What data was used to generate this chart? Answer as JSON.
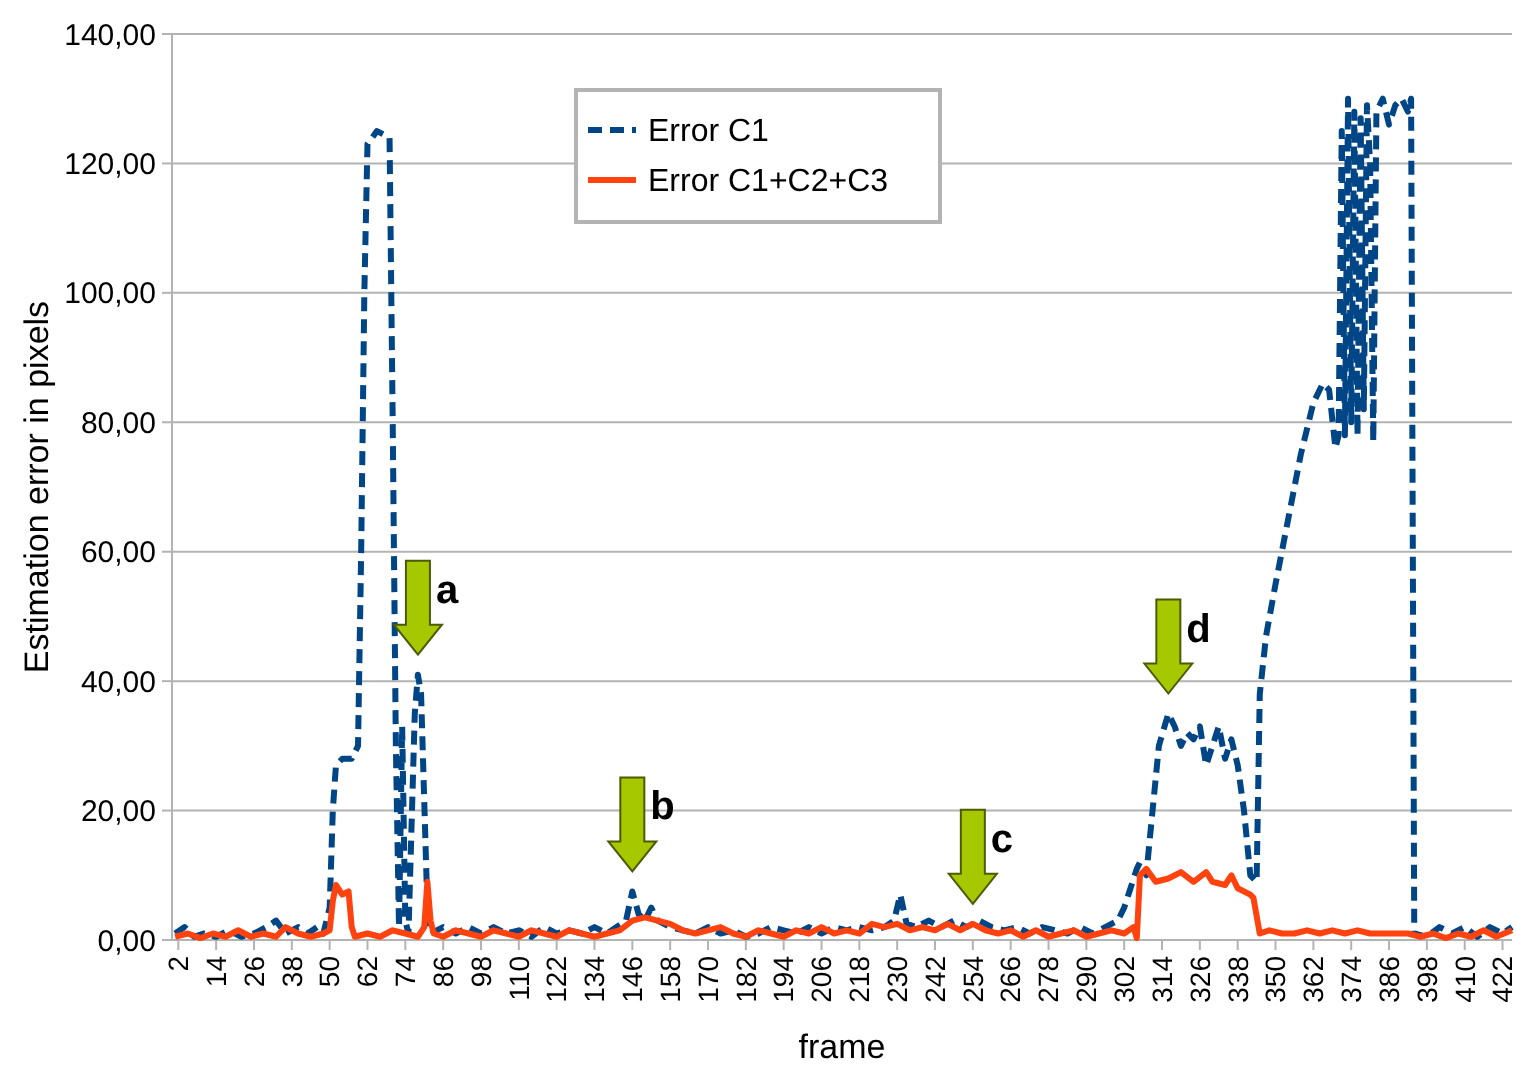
{
  "chart_data": {
    "type": "line",
    "xlabel": "frame",
    "ylabel": "Estimation error in pixels",
    "xlim": [
      0,
      425
    ],
    "xticks": [
      2,
      14,
      26,
      38,
      50,
      62,
      74,
      86,
      98,
      110,
      122,
      134,
      146,
      158,
      170,
      182,
      194,
      206,
      218,
      230,
      242,
      254,
      266,
      278,
      290,
      302,
      314,
      326,
      338,
      350,
      362,
      374,
      386,
      398,
      410,
      422
    ],
    "ylim": [
      0,
      140
    ],
    "yticks": [
      {
        "value": 0,
        "label": "0,00"
      },
      {
        "value": 20,
        "label": "20,00"
      },
      {
        "value": 40,
        "label": "40,00"
      },
      {
        "value": 60,
        "label": "60,00"
      },
      {
        "value": 80,
        "label": "80,00"
      },
      {
        "value": 100,
        "label": "100,00"
      },
      {
        "value": 120,
        "label": "120,00"
      },
      {
        "value": 140,
        "label": "140,00"
      }
    ],
    "grid": "y",
    "legend": "top",
    "marker": "none",
    "series": [
      {
        "name": "Error C1",
        "color": "#004586",
        "line_style": "dashed",
        "x": [
          1,
          4,
          7,
          10,
          14,
          18,
          22,
          26,
          30,
          33,
          36,
          40,
          43,
          46,
          48,
          50,
          51,
          52,
          54,
          57,
          59,
          60,
          61,
          62,
          65,
          69,
          70,
          71,
          72,
          73,
          74,
          75,
          77,
          78,
          79,
          81,
          82,
          86,
          90,
          94,
          98,
          102,
          106,
          110,
          114,
          118,
          122,
          126,
          130,
          134,
          138,
          141,
          144,
          146,
          148,
          150,
          152,
          154,
          158,
          162,
          166,
          170,
          174,
          178,
          182,
          186,
          190,
          194,
          198,
          202,
          206,
          210,
          214,
          218,
          222,
          226,
          229,
          231,
          233,
          236,
          240,
          244,
          248,
          252,
          256,
          260,
          264,
          268,
          272,
          276,
          280,
          284,
          288,
          292,
          296,
          300,
          302,
          304,
          306,
          307,
          309,
          311,
          313,
          316,
          318,
          320,
          322,
          324,
          326,
          328,
          330,
          332,
          334,
          336,
          338,
          340,
          342,
          344,
          345,
          347,
          350,
          354,
          358,
          362,
          365,
          367,
          369,
          370,
          371,
          372,
          373,
          374,
          375,
          376,
          377,
          378,
          379,
          380,
          381,
          382,
          384,
          386,
          388,
          390,
          392,
          393,
          394,
          398,
          402,
          406,
          410,
          414,
          418,
          422,
          425
        ],
        "values": [
          1,
          2,
          0.5,
          1,
          0.5,
          1.5,
          0.5,
          1,
          2,
          3,
          1,
          2,
          1,
          2,
          1,
          5,
          20,
          27,
          28,
          28,
          30,
          60,
          100,
          123,
          125,
          124,
          80,
          30,
          2,
          33,
          3,
          1,
          35,
          41,
          38,
          5,
          1,
          2,
          1,
          2,
          1,
          2,
          1,
          1.5,
          0.5,
          2,
          1,
          1.5,
          1,
          2,
          1,
          2,
          3,
          7.5,
          4,
          3,
          5,
          3,
          2,
          1.5,
          1,
          2,
          1,
          1.5,
          0.5,
          1,
          2,
          1.5,
          1,
          2,
          1,
          2,
          1.5,
          2,
          1.5,
          2,
          3,
          7,
          2.5,
          2,
          3,
          2,
          3,
          2,
          3,
          2,
          1.5,
          2,
          1,
          2,
          1.5,
          1,
          2,
          1,
          2,
          3,
          5,
          8,
          11,
          12,
          10,
          20,
          30,
          35,
          33,
          30,
          32,
          31,
          33,
          27,
          30,
          33,
          28,
          31,
          27,
          20,
          10,
          9,
          38,
          47,
          55,
          65,
          75,
          83,
          86,
          85,
          76,
          78,
          125,
          78,
          130,
          80,
          128,
          78,
          127,
          82,
          129,
          120,
          77,
          128,
          130,
          126,
          129,
          130,
          128,
          130,
          1,
          0.5,
          2,
          1,
          2,
          0.5,
          2,
          1,
          2
        ]
      },
      {
        "name": "Error C1+C2+C3",
        "color": "#ff420e",
        "line_style": "solid",
        "x": [
          1,
          5,
          9,
          13,
          17,
          21,
          25,
          29,
          33,
          36,
          40,
          44,
          48,
          50,
          51,
          52,
          54,
          56,
          57,
          58,
          62,
          66,
          70,
          74,
          78,
          80,
          81,
          82,
          83,
          86,
          90,
          94,
          98,
          102,
          106,
          110,
          114,
          118,
          122,
          126,
          130,
          134,
          138,
          142,
          146,
          150,
          154,
          158,
          162,
          166,
          170,
          174,
          178,
          182,
          186,
          190,
          194,
          198,
          202,
          206,
          210,
          214,
          218,
          222,
          226,
          230,
          234,
          238,
          242,
          246,
          250,
          254,
          258,
          262,
          266,
          270,
          274,
          278,
          282,
          286,
          290,
          294,
          298,
          302,
          305,
          306,
          307,
          309,
          312,
          316,
          320,
          324,
          328,
          330,
          334,
          336,
          338,
          342,
          343,
          345,
          348,
          352,
          356,
          360,
          364,
          368,
          372,
          376,
          380,
          384,
          388,
          392,
          396,
          400,
          404,
          408,
          412,
          416,
          420,
          425
        ],
        "values": [
          0.5,
          1,
          0.3,
          1,
          0.5,
          1.5,
          0.5,
          1,
          0.5,
          2,
          1,
          0.5,
          1,
          1.5,
          6,
          8.5,
          7,
          7.5,
          2,
          0.5,
          1,
          0.5,
          1.5,
          1,
          0.5,
          2,
          9,
          3,
          1,
          0.5,
          1.5,
          1,
          0.5,
          1.5,
          1,
          0.5,
          1.5,
          1,
          0.5,
          1.5,
          1,
          0.5,
          1,
          1.5,
          3,
          3.5,
          3,
          2.5,
          1.5,
          1,
          1.5,
          2,
          1,
          0.5,
          1.5,
          1,
          0.5,
          1.5,
          1,
          2,
          1,
          1.5,
          1,
          2.5,
          2,
          2.5,
          1.5,
          2,
          1.5,
          2.5,
          1.5,
          2.5,
          1.5,
          1,
          1.5,
          0.5,
          1.5,
          0.5,
          1,
          1.5,
          0.5,
          1,
          1.5,
          1,
          2,
          0.3,
          10,
          11,
          9,
          9.5,
          10.5,
          9,
          10.5,
          9,
          8.5,
          10,
          8,
          7,
          6.5,
          1,
          1.5,
          1,
          1,
          1.5,
          1,
          1.5,
          1,
          1.5,
          1,
          1,
          1,
          1,
          0.5,
          1,
          0.3,
          1,
          0.5,
          1.5,
          0.5,
          1.5
        ]
      }
    ],
    "annotations": [
      {
        "text": "a",
        "x": 78,
        "y": 41
      },
      {
        "text": "b",
        "x": 146,
        "y": 7.5
      },
      {
        "text": "c",
        "x": 254,
        "y": 2.5
      },
      {
        "text": "d",
        "x": 316,
        "y": 35
      }
    ]
  }
}
